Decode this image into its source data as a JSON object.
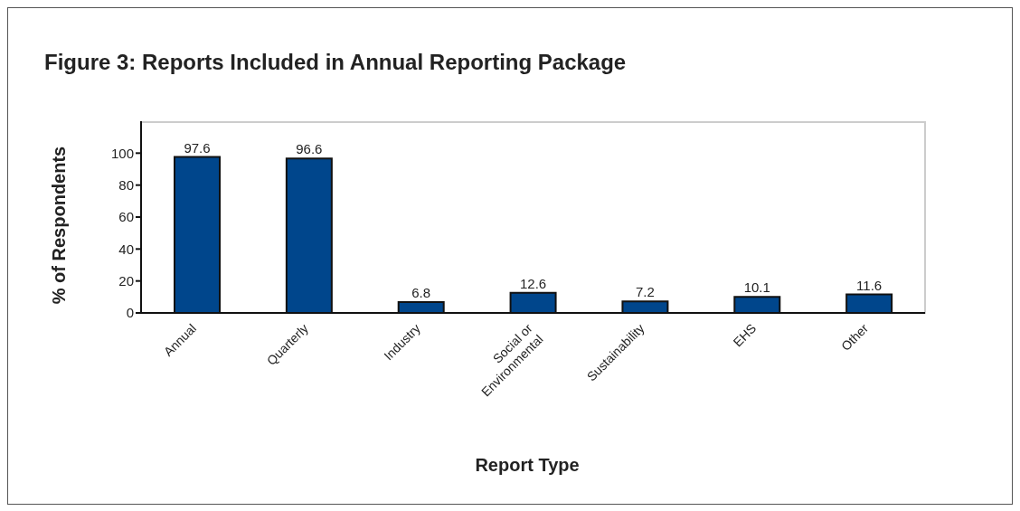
{
  "chart_data": {
    "type": "bar",
    "title": "Figure 3: Reports Included in Annual Reporting Package",
    "xlabel": "Report Type",
    "ylabel": "% of Respondents",
    "categories": [
      "Annual",
      "Quarterly",
      "Industry",
      "Social or Environmental",
      "Sustainability",
      "EHS",
      "Other"
    ],
    "values": [
      97.6,
      96.6,
      6.8,
      12.6,
      7.2,
      10.1,
      11.6
    ],
    "color": "#00468c",
    "ylim": [
      0,
      120
    ],
    "yticks": [
      0,
      20,
      40,
      60,
      80,
      100
    ],
    "grid": false,
    "data_labels": true
  }
}
